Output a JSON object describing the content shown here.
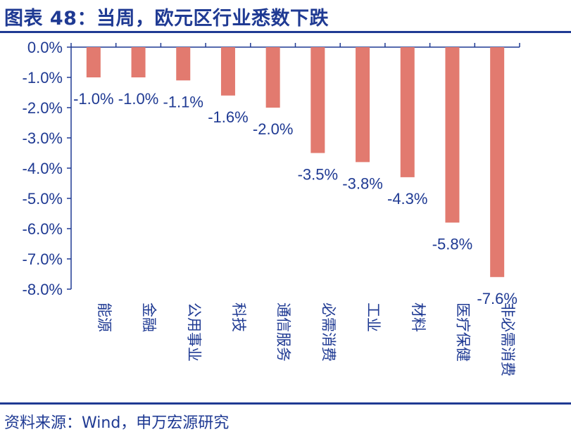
{
  "header": {
    "title": "图表 48：当周，欧元区行业悉数下跌"
  },
  "footer": {
    "source": "资料来源：Wind，申万宏源研究"
  },
  "colors": {
    "bar": "#e27a6f",
    "text": "#1f3a93",
    "axis": "#1f3a93"
  },
  "chart_data": {
    "type": "bar",
    "title": "",
    "xlabel": "",
    "ylabel": "",
    "categories": [
      "能源",
      "金融",
      "公用事业",
      "科技",
      "通信服务",
      "必需消费",
      "工业",
      "材料",
      "医疗保健",
      "非必需消费"
    ],
    "values": [
      -1.0,
      -1.0,
      -1.1,
      -1.6,
      -2.0,
      -3.5,
      -3.8,
      -4.3,
      -5.8,
      -7.6
    ],
    "data_labels": [
      "-1.0%",
      "-1.0%",
      "-1.1%",
      "-1.6%",
      "-2.0%",
      "-3.5%",
      "-3.8%",
      "-4.3%",
      "-5.8%",
      "-7.6%"
    ],
    "ylim": [
      -8.0,
      0.0
    ],
    "y_ticks": [
      0,
      -1,
      -2,
      -3,
      -4,
      -5,
      -6,
      -7,
      -8
    ],
    "y_tick_labels": [
      "0.0%",
      "-1.0%",
      "-2.0%",
      "-3.0%",
      "-4.0%",
      "-5.0%",
      "-6.0%",
      "-7.0%",
      "-8.0%"
    ],
    "legend": "none",
    "grid": false
  }
}
